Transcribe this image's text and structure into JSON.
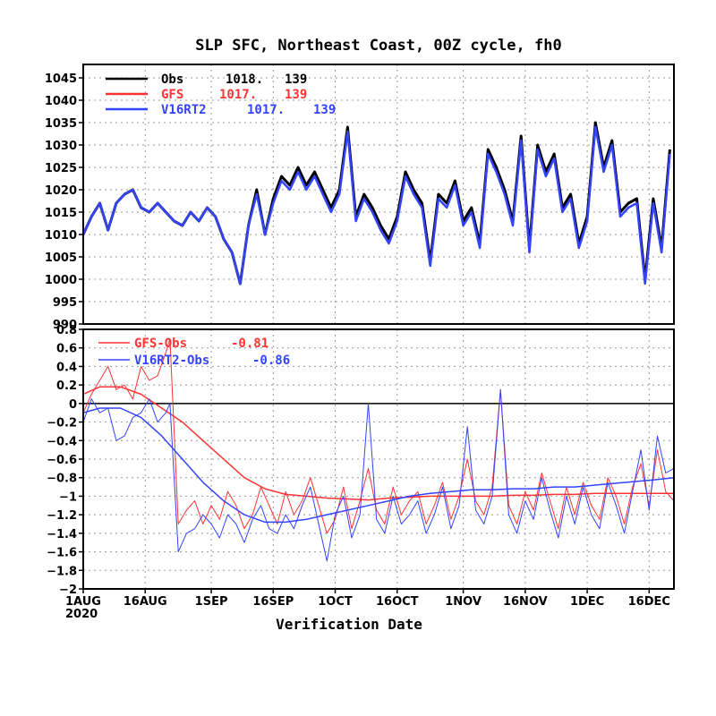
{
  "chart_data": [
    {
      "type": "line",
      "title": "SLP SFC, Northeast Coast, 00Z cycle, fh0",
      "ylim": [
        990,
        1048
      ],
      "yticks": [
        990,
        995,
        1000,
        1005,
        1010,
        1015,
        1020,
        1025,
        1030,
        1035,
        1040,
        1045
      ],
      "xlim": [
        1,
        144
      ],
      "legend_position": "top-left",
      "grid": true,
      "series": [
        {
          "name": "Obs",
          "stat": "1018.",
          "count": "139",
          "color": "#000000",
          "x": [
            1,
            3,
            5,
            7,
            9,
            11,
            13,
            15,
            17,
            19,
            21,
            23,
            25,
            27,
            29,
            31,
            33,
            35,
            37,
            39,
            41,
            43,
            45,
            47,
            49,
            51,
            53,
            55,
            57,
            59,
            61,
            63,
            65,
            67,
            69,
            71,
            73,
            75,
            77,
            79,
            81,
            83,
            85,
            87,
            89,
            91,
            93,
            95,
            97,
            99,
            101,
            103,
            105,
            107,
            109,
            111,
            113,
            115,
            117,
            119,
            121,
            123,
            125,
            127,
            129,
            131,
            133,
            135,
            137,
            139,
            141,
            143
          ],
          "y": [
            1010,
            1014,
            1017,
            1011,
            1017,
            1019,
            1020,
            1016,
            1015,
            1017,
            1015,
            1013,
            1012,
            1015,
            1013,
            1016,
            1014,
            1009,
            1006,
            999,
            1012,
            1020,
            1010,
            1018,
            1023,
            1021,
            1025,
            1021,
            1024,
            1020,
            1016,
            1020,
            1034,
            1014,
            1019,
            1016,
            1012,
            1009,
            1014,
            1024,
            1020,
            1017,
            1004,
            1019,
            1017,
            1022,
            1013,
            1016,
            1008,
            1029,
            1025,
            1020,
            1013,
            1032,
            1007,
            1030,
            1024,
            1028,
            1016,
            1019,
            1008,
            1014,
            1035,
            1025,
            1031,
            1015,
            1017,
            1018,
            1000,
            1018,
            1007,
            1029
          ]
        },
        {
          "name": "GFS",
          "stat": "1017.",
          "count": "139",
          "color": "#ff3333",
          "x": [
            1,
            3,
            5,
            7,
            9,
            11,
            13,
            15,
            17,
            19,
            21,
            23,
            25,
            27,
            29,
            31,
            33,
            35,
            37,
            39,
            41,
            43,
            45,
            47,
            49,
            51,
            53,
            55,
            57,
            59,
            61,
            63,
            65,
            67,
            69,
            71,
            73,
            75,
            77,
            79,
            81,
            83,
            85,
            87,
            89,
            91,
            93,
            95,
            97,
            99,
            101,
            103,
            105,
            107,
            109,
            111,
            113,
            115,
            117,
            119,
            121,
            123,
            125,
            127,
            129,
            131,
            133,
            135,
            137,
            139,
            141,
            143
          ],
          "y": [
            1010,
            1014,
            1017,
            1011,
            1017,
            1019,
            1020,
            1016,
            1015,
            1017,
            1015,
            1013,
            1012,
            1015,
            1013,
            1016,
            1014,
            1009,
            1006,
            999,
            1012,
            1019,
            1010,
            1017,
            1022,
            1020,
            1024,
            1020,
            1023,
            1019,
            1015,
            1019,
            1033,
            1013,
            1018,
            1015,
            1011,
            1008,
            1013,
            1023,
            1019,
            1016,
            1003,
            1018,
            1016,
            1021,
            1012,
            1015,
            1007,
            1028,
            1024,
            1019,
            1012,
            1031,
            1006,
            1029,
            1023,
            1027,
            1015,
            1018,
            1007,
            1013,
            1034,
            1024,
            1030,
            1014,
            1016,
            1017,
            999,
            1017,
            1006,
            1028
          ]
        },
        {
          "name": "V16RT2",
          "stat": "1017.",
          "count": "139",
          "color": "#3344ff",
          "x": [
            1,
            3,
            5,
            7,
            9,
            11,
            13,
            15,
            17,
            19,
            21,
            23,
            25,
            27,
            29,
            31,
            33,
            35,
            37,
            39,
            41,
            43,
            45,
            47,
            49,
            51,
            53,
            55,
            57,
            59,
            61,
            63,
            65,
            67,
            69,
            71,
            73,
            75,
            77,
            79,
            81,
            83,
            85,
            87,
            89,
            91,
            93,
            95,
            97,
            99,
            101,
            103,
            105,
            107,
            109,
            111,
            113,
            115,
            117,
            119,
            121,
            123,
            125,
            127,
            129,
            131,
            133,
            135,
            137,
            139,
            141,
            143
          ],
          "y": [
            1010,
            1014,
            1017,
            1011,
            1017,
            1019,
            1020,
            1016,
            1015,
            1017,
            1015,
            1013,
            1012,
            1015,
            1013,
            1016,
            1014,
            1009,
            1006,
            999,
            1012,
            1019,
            1010,
            1017,
            1022,
            1020,
            1024,
            1020,
            1023,
            1019,
            1015,
            1019,
            1033,
            1013,
            1018,
            1015,
            1011,
            1008,
            1013,
            1023,
            1019,
            1016,
            1003,
            1018,
            1016,
            1021,
            1012,
            1015,
            1007,
            1028,
            1024,
            1019,
            1012,
            1031,
            1006,
            1029,
            1023,
            1027,
            1015,
            1018,
            1007,
            1013,
            1034,
            1024,
            1030,
            1014,
            1016,
            1017,
            999,
            1017,
            1006,
            1028
          ]
        }
      ]
    },
    {
      "type": "line",
      "ylim": [
        -2,
        0.8
      ],
      "yticks": [
        -2,
        -1.8,
        -1.6,
        -1.4,
        -1.2,
        -1,
        -0.8,
        -0.6,
        -0.4,
        -0.2,
        0,
        0.2,
        0.4,
        0.6,
        0.8
      ],
      "xlim": [
        1,
        144
      ],
      "xlabel": "Verification Date",
      "xticks": [
        1,
        16,
        32,
        47,
        62,
        77,
        93,
        108,
        123,
        138
      ],
      "xticklabels": [
        "1AUG",
        "16AUG",
        "1SEP",
        "16SEP",
        "1OCT",
        "16OCT",
        "1NOV",
        "16NOV",
        "1DEC",
        "16DEC"
      ],
      "xticksub": "2020",
      "legend_position": "top-left",
      "grid": true,
      "series": [
        {
          "name": "GFS-Obs",
          "stat": "-0.81",
          "color": "#ff3333",
          "style": "daily",
          "x": [
            1,
            3,
            5,
            7,
            9,
            11,
            13,
            15,
            17,
            19,
            21,
            22,
            24,
            26,
            28,
            30,
            32,
            34,
            36,
            38,
            40,
            42,
            44,
            46,
            48,
            50,
            52,
            54,
            56,
            58,
            60,
            62,
            64,
            66,
            68,
            70,
            72,
            74,
            76,
            78,
            80,
            82,
            84,
            86,
            88,
            90,
            92,
            94,
            96,
            98,
            100,
            102,
            104,
            106,
            108,
            110,
            112,
            114,
            116,
            118,
            120,
            122,
            124,
            126,
            128,
            130,
            132,
            134,
            136,
            138,
            140,
            142,
            144
          ],
          "y": [
            -0.1,
            0.1,
            0.25,
            0.4,
            0.15,
            0.2,
            0.05,
            0.4,
            0.25,
            0.3,
            0.55,
            0.7,
            -1.3,
            -1.15,
            -1.05,
            -1.3,
            -1.1,
            -1.25,
            -0.95,
            -1.1,
            -1.35,
            -1.2,
            -0.9,
            -1.1,
            -1.3,
            -0.95,
            -1.2,
            -1.05,
            -0.8,
            -1.1,
            -1.4,
            -1.25,
            -0.9,
            -1.35,
            -1.05,
            -0.7,
            -1.15,
            -1.3,
            -0.9,
            -1.2,
            -1.05,
            -0.95,
            -1.3,
            -1.1,
            -0.85,
            -1.25,
            -1.0,
            -0.6,
            -1.05,
            -1.2,
            -0.9,
            0.15,
            -1.1,
            -1.3,
            -0.95,
            -1.15,
            -0.75,
            -1.05,
            -1.35,
            -0.9,
            -1.2,
            -0.85,
            -1.1,
            -1.25,
            -0.8,
            -1.0,
            -1.3,
            -0.9,
            -0.65,
            -1.1,
            -0.5,
            -0.95,
            -1.05
          ]
        },
        {
          "name": "GFS-Obs mean",
          "stat": "",
          "color": "#ff3333",
          "style": "mean",
          "x": [
            1,
            5,
            10,
            15,
            20,
            25,
            30,
            35,
            40,
            45,
            50,
            55,
            60,
            65,
            70,
            75,
            80,
            85,
            90,
            95,
            100,
            105,
            110,
            115,
            120,
            125,
            130,
            135,
            140,
            144
          ],
          "y": [
            0.1,
            0.18,
            0.18,
            0.1,
            -0.05,
            -0.2,
            -0.4,
            -0.6,
            -0.8,
            -0.92,
            -0.98,
            -1.0,
            -1.02,
            -1.03,
            -1.04,
            -1.02,
            -1.01,
            -1.0,
            -1.0,
            -1.0,
            -1.0,
            -0.99,
            -0.99,
            -0.98,
            -0.98,
            -0.97,
            -0.97,
            -0.97,
            -0.97,
            -0.97
          ]
        },
        {
          "name": "V16RT2-Obs",
          "stat": "-0.86",
          "color": "#3344ff",
          "style": "daily",
          "x": [
            1,
            3,
            5,
            7,
            9,
            11,
            13,
            15,
            17,
            19,
            21,
            22,
            24,
            26,
            28,
            30,
            32,
            34,
            36,
            38,
            40,
            42,
            44,
            46,
            48,
            50,
            52,
            54,
            56,
            58,
            60,
            62,
            64,
            66,
            68,
            70,
            72,
            74,
            76,
            78,
            80,
            82,
            84,
            86,
            88,
            90,
            92,
            94,
            96,
            98,
            100,
            102,
            104,
            106,
            108,
            110,
            112,
            114,
            116,
            118,
            120,
            122,
            124,
            126,
            128,
            130,
            132,
            134,
            136,
            138,
            140,
            142,
            144
          ],
          "y": [
            -0.2,
            0.05,
            -0.1,
            -0.05,
            -0.4,
            -0.35,
            -0.15,
            -0.1,
            0.05,
            -0.2,
            -0.1,
            0.0,
            -1.6,
            -1.4,
            -1.35,
            -1.2,
            -1.3,
            -1.45,
            -1.2,
            -1.3,
            -1.5,
            -1.25,
            -1.1,
            -1.35,
            -1.4,
            -1.2,
            -1.35,
            -1.1,
            -0.9,
            -1.3,
            -1.7,
            -1.2,
            -1.0,
            -1.45,
            -1.2,
            -0.0,
            -1.25,
            -1.4,
            -1.0,
            -1.3,
            -1.2,
            -1.05,
            -1.4,
            -1.2,
            -0.9,
            -1.35,
            -1.1,
            -0.25,
            -1.15,
            -1.3,
            -1.0,
            0.15,
            -1.2,
            -1.4,
            -1.05,
            -1.25,
            -0.8,
            -1.15,
            -1.45,
            -1.0,
            -1.3,
            -0.9,
            -1.2,
            -1.35,
            -0.85,
            -1.1,
            -1.4,
            -0.95,
            -0.5,
            -1.15,
            -0.35,
            -0.75,
            -0.7
          ]
        },
        {
          "name": "V16RT2-Obs mean",
          "stat": "",
          "color": "#3344ff",
          "style": "mean",
          "x": [
            1,
            5,
            10,
            15,
            20,
            25,
            30,
            35,
            40,
            45,
            50,
            55,
            60,
            65,
            70,
            75,
            80,
            85,
            90,
            95,
            100,
            105,
            110,
            115,
            120,
            125,
            130,
            135,
            140,
            144
          ],
          "y": [
            -0.1,
            -0.05,
            -0.05,
            -0.15,
            -0.35,
            -0.6,
            -0.85,
            -1.05,
            -1.2,
            -1.28,
            -1.28,
            -1.25,
            -1.2,
            -1.15,
            -1.1,
            -1.05,
            -1.0,
            -0.97,
            -0.95,
            -0.93,
            -0.93,
            -0.92,
            -0.92,
            -0.9,
            -0.9,
            -0.88,
            -0.86,
            -0.84,
            -0.82,
            -0.8
          ]
        }
      ]
    }
  ]
}
